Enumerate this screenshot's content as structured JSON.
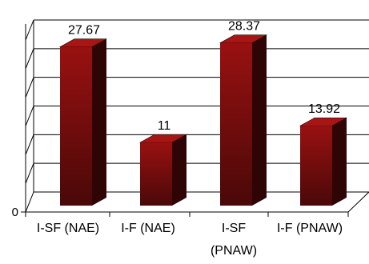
{
  "chart_data": {
    "type": "bar",
    "title": "",
    "xlabel": "",
    "ylabel": "",
    "categories": [
      [
        "I-SF (NAE)"
      ],
      [
        "I-F (NAE)"
      ],
      [
        "I-SF",
        "(PNAW)"
      ],
      [
        "I-F (PNAW)"
      ]
    ],
    "values": [
      27.67,
      11,
      28.37,
      13.92
    ],
    "data_labels": [
      "27.67",
      "11",
      "28.37",
      "13.92"
    ],
    "ylim": [
      0,
      30
    ],
    "y_tick_labels": [
      "0"
    ],
    "grid": true,
    "three_d": true,
    "legend": "none",
    "colors": {
      "bar_front_top": "#991111",
      "bar_front_bottom": "#4a0808",
      "bar_side": "#2e0404",
      "bar_top": "#a81515",
      "axis": "#000000",
      "grid": "#000000"
    }
  }
}
